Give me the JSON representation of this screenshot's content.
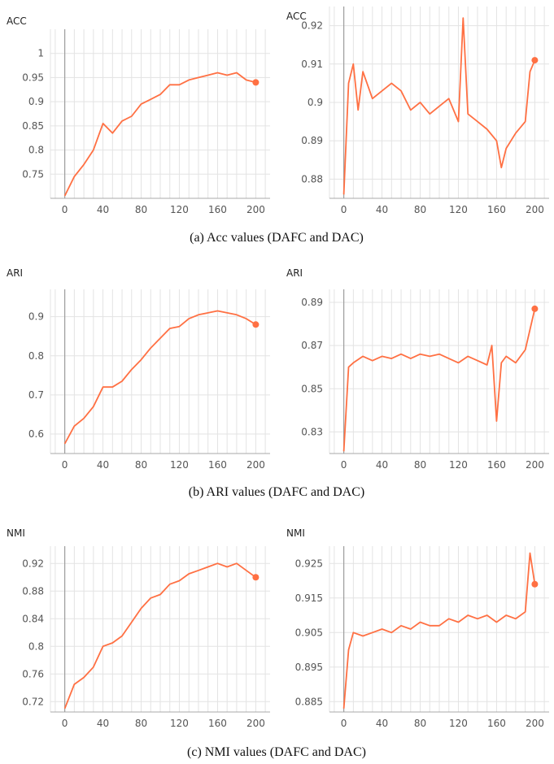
{
  "colors": {
    "series": "#ff7043",
    "grid": "#e3e3e3",
    "axis": "#a8a8a8",
    "zero_line": "#9e9e9e"
  },
  "captions": [
    "(a) Acc values (DAFC and DAC)",
    "(b) ARI values (DAFC and DAC)",
    "(c) NMI values (DAFC and DAC)"
  ],
  "chart_data": [
    {
      "type": "line",
      "panel": "a-left",
      "ylabel": "ACC",
      "xlim": [
        -15,
        215
      ],
      "ylim": [
        0.7,
        1.05
      ],
      "xticks": [
        0,
        40,
        80,
        120,
        160,
        200
      ],
      "yticks": [
        0.75,
        0.8,
        0.85,
        0.9,
        0.95,
        1
      ],
      "ytick_labels": [
        "0.75",
        "0.8",
        "0.85",
        "0.9",
        "0.95",
        "1"
      ],
      "grid": true,
      "legend": "none",
      "x": [
        0,
        10,
        20,
        30,
        40,
        50,
        60,
        70,
        80,
        90,
        100,
        110,
        120,
        130,
        140,
        150,
        160,
        170,
        180,
        190,
        200
      ],
      "y": [
        0.705,
        0.745,
        0.77,
        0.8,
        0.855,
        0.835,
        0.86,
        0.87,
        0.895,
        0.905,
        0.915,
        0.935,
        0.935,
        0.945,
        0.95,
        0.955,
        0.96,
        0.955,
        0.96,
        0.945,
        0.94
      ],
      "series_end_marker": true
    },
    {
      "type": "line",
      "panel": "a-right",
      "ylabel": "ACC",
      "xlim": [
        -15,
        215
      ],
      "ylim": [
        0.875,
        0.925
      ],
      "xticks": [
        0,
        40,
        80,
        120,
        160,
        200
      ],
      "yticks": [
        0.88,
        0.89,
        0.9,
        0.91,
        0.92
      ],
      "ytick_labels": [
        "0.88",
        "0.89",
        "0.9",
        "0.91",
        "0.92"
      ],
      "grid": true,
      "legend": "none",
      "x": [
        0,
        5,
        10,
        15,
        20,
        30,
        40,
        50,
        60,
        70,
        80,
        90,
        100,
        110,
        120,
        125,
        130,
        140,
        150,
        160,
        165,
        170,
        180,
        190,
        195,
        200
      ],
      "y": [
        0.876,
        0.905,
        0.91,
        0.898,
        0.908,
        0.901,
        0.903,
        0.905,
        0.903,
        0.898,
        0.9,
        0.897,
        0.899,
        0.901,
        0.895,
        0.922,
        0.897,
        0.895,
        0.893,
        0.89,
        0.883,
        0.888,
        0.892,
        0.895,
        0.908,
        0.911
      ],
      "series_end_marker": true
    },
    {
      "type": "line",
      "panel": "b-left",
      "ylabel": "ARI",
      "xlim": [
        -15,
        215
      ],
      "ylim": [
        0.55,
        0.97
      ],
      "xticks": [
        0,
        40,
        80,
        120,
        160,
        200
      ],
      "yticks": [
        0.6,
        0.7,
        0.8,
        0.9
      ],
      "ytick_labels": [
        "0.6",
        "0.7",
        "0.8",
        "0.9"
      ],
      "grid": true,
      "legend": "none",
      "x": [
        0,
        10,
        20,
        30,
        40,
        50,
        60,
        70,
        80,
        90,
        100,
        110,
        120,
        130,
        140,
        150,
        160,
        170,
        180,
        190,
        200
      ],
      "y": [
        0.575,
        0.62,
        0.64,
        0.67,
        0.72,
        0.72,
        0.735,
        0.765,
        0.79,
        0.82,
        0.845,
        0.87,
        0.875,
        0.895,
        0.905,
        0.91,
        0.915,
        0.91,
        0.905,
        0.895,
        0.88
      ],
      "series_end_marker": true
    },
    {
      "type": "line",
      "panel": "b-right",
      "ylabel": "ARI",
      "xlim": [
        -15,
        215
      ],
      "ylim": [
        0.82,
        0.896
      ],
      "xticks": [
        0,
        40,
        80,
        120,
        160,
        200
      ],
      "yticks": [
        0.83,
        0.85,
        0.87,
        0.89
      ],
      "ytick_labels": [
        "0.83",
        "0.85",
        "0.87",
        "0.89"
      ],
      "grid": true,
      "legend": "none",
      "x": [
        0,
        5,
        10,
        20,
        30,
        40,
        50,
        60,
        70,
        80,
        90,
        100,
        110,
        120,
        130,
        140,
        150,
        155,
        160,
        165,
        170,
        180,
        190,
        200
      ],
      "y": [
        0.821,
        0.86,
        0.862,
        0.865,
        0.863,
        0.865,
        0.864,
        0.866,
        0.864,
        0.866,
        0.865,
        0.866,
        0.864,
        0.862,
        0.865,
        0.863,
        0.861,
        0.87,
        0.835,
        0.862,
        0.865,
        0.862,
        0.868,
        0.887
      ],
      "series_end_marker": true
    },
    {
      "type": "line",
      "panel": "c-left",
      "ylabel": "NMI",
      "xlim": [
        -15,
        215
      ],
      "ylim": [
        0.705,
        0.945
      ],
      "xticks": [
        0,
        40,
        80,
        120,
        160,
        200
      ],
      "yticks": [
        0.72,
        0.76,
        0.8,
        0.84,
        0.88,
        0.92
      ],
      "ytick_labels": [
        "0.72",
        "0.76",
        "0.8",
        "0.84",
        "0.88",
        "0.92"
      ],
      "grid": true,
      "legend": "none",
      "x": [
        0,
        10,
        20,
        30,
        40,
        50,
        60,
        70,
        80,
        90,
        100,
        110,
        120,
        130,
        140,
        150,
        160,
        170,
        180,
        190,
        200
      ],
      "y": [
        0.71,
        0.745,
        0.755,
        0.77,
        0.8,
        0.805,
        0.815,
        0.835,
        0.855,
        0.87,
        0.875,
        0.89,
        0.895,
        0.905,
        0.91,
        0.915,
        0.92,
        0.915,
        0.92,
        0.91,
        0.9
      ],
      "series_end_marker": true
    },
    {
      "type": "line",
      "panel": "c-right",
      "ylabel": "NMI",
      "xlim": [
        -15,
        215
      ],
      "ylim": [
        0.882,
        0.93
      ],
      "xticks": [
        0,
        40,
        80,
        120,
        160,
        200
      ],
      "yticks": [
        0.885,
        0.895,
        0.905,
        0.915,
        0.925
      ],
      "ytick_labels": [
        "0.885",
        "0.895",
        "0.905",
        "0.915",
        "0.925"
      ],
      "grid": true,
      "legend": "none",
      "x": [
        0,
        5,
        10,
        20,
        30,
        40,
        50,
        60,
        70,
        80,
        90,
        100,
        110,
        120,
        130,
        140,
        150,
        160,
        170,
        180,
        190,
        195,
        200
      ],
      "y": [
        0.883,
        0.9,
        0.905,
        0.904,
        0.905,
        0.906,
        0.905,
        0.907,
        0.906,
        0.908,
        0.907,
        0.907,
        0.909,
        0.908,
        0.91,
        0.909,
        0.91,
        0.908,
        0.91,
        0.909,
        0.911,
        0.928,
        0.919
      ],
      "series_end_marker": true
    }
  ]
}
